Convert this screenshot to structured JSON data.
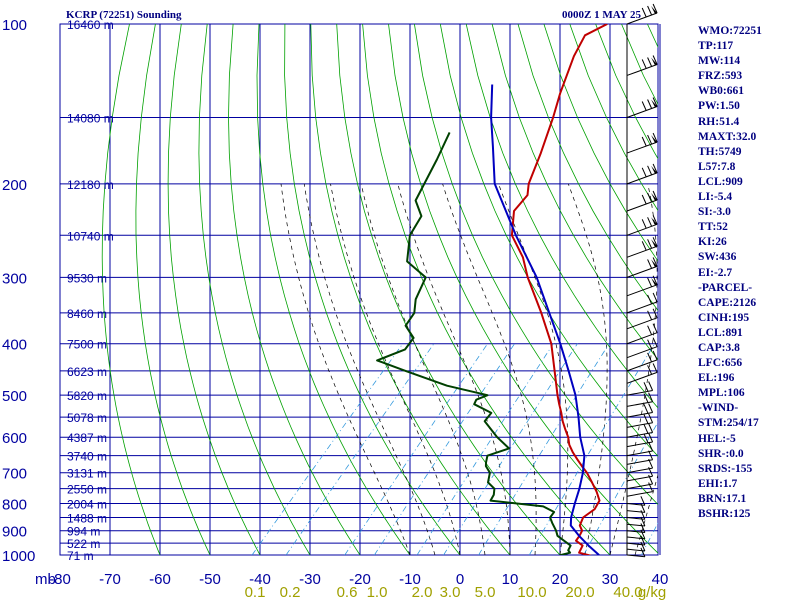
{
  "header": {
    "station": "KCRP (72251) Sounding",
    "time": "0000Z  1 MAY 25"
  },
  "indices": [
    "WMO:72251",
    "TP:117",
    "MW:114",
    "FRZ:593",
    "WB0:661",
    "PW:1.50",
    "RH:51.4",
    "MAXT:32.0",
    "TH:5749",
    "L57:7.8",
    "LCL:909",
    "LI:-5.4",
    "SI:-3.0",
    "TT:52",
    "KI:26",
    "SW:436",
    "EI:-2.7",
    "-PARCEL-",
    "CAPE:2126",
    "CINH:195",
    "LCL:891",
    "CAP:3.8",
    "LFC:656",
    "EL:196",
    "MPL:106",
    "-WIND-",
    "STM:254/17",
    "HEL:-5",
    "SHR-:0.0",
    "SRDS:-155",
    "EHI:1.7",
    "BRN:17.1",
    "BSHR:125"
  ],
  "colors": {
    "grid": "#0000a0",
    "dry_adiabat": "#00a000",
    "moist_adiabat": "#000000",
    "mixing_ratio": "#3399dd",
    "temperature": "#c00000",
    "dewpoint": "#004000",
    "parcel": "#0000c0",
    "label": "#0000a0",
    "mixing_label": "#a0a000"
  },
  "chart_data": {
    "type": "skew-t",
    "pressure_levels": [
      100,
      200,
      300,
      400,
      500,
      600,
      700,
      800,
      900,
      1000
    ],
    "pressure_axis_unit": "mb",
    "y_scale": "log",
    "temperature_ticks": [
      -80,
      -70,
      -60,
      -50,
      -40,
      -30,
      -20,
      -10,
      0,
      10,
      20,
      30,
      40
    ],
    "mixing_ratio_ticks": [
      "0.1",
      "0.2",
      "0.6",
      "1.0",
      "2.0",
      "3.0",
      "5.0",
      "10.0",
      "20.0",
      "40.0",
      "g/kg"
    ],
    "height_labels": [
      {
        "p": 100,
        "label": "16460 m"
      },
      {
        "p": 150,
        "label": "14080 m"
      },
      {
        "p": 200,
        "label": "12180 m"
      },
      {
        "p": 250,
        "label": "10740 m"
      },
      {
        "p": 300,
        "label": "9530 m"
      },
      {
        "p": 350,
        "label": "8460 m"
      },
      {
        "p": 400,
        "label": "7500 m"
      },
      {
        "p": 450,
        "label": "6623 m"
      },
      {
        "p": 500,
        "label": "5820 m"
      },
      {
        "p": 550,
        "label": "5078 m"
      },
      {
        "p": 600,
        "label": "4387 m"
      },
      {
        "p": 650,
        "label": "3740 m"
      },
      {
        "p": 700,
        "label": "3131 m"
      },
      {
        "p": 750,
        "label": "2550 m"
      },
      {
        "p": 800,
        "label": "2004 m"
      },
      {
        "p": 850,
        "label": "1488 m"
      },
      {
        "p": 900,
        "label": "994 m"
      },
      {
        "p": 950,
        "label": "522 m"
      },
      {
        "p": 1000,
        "label": "71 m"
      }
    ],
    "series": [
      {
        "name": "temperature",
        "points": [
          [
            1010,
            27.8
          ],
          [
            990,
            23.4
          ],
          [
            960,
            22.8
          ],
          [
            940,
            20.6
          ],
          [
            920,
            20.4
          ],
          [
            900,
            20.0
          ],
          [
            880,
            18.6
          ],
          [
            850,
            17.8
          ],
          [
            820,
            18.6
          ],
          [
            790,
            18.0
          ],
          [
            760,
            15.8
          ],
          [
            730,
            13.2
          ],
          [
            700,
            10.4
          ],
          [
            680,
            8.2
          ],
          [
            660,
            6.0
          ],
          [
            640,
            3.8
          ],
          [
            620,
            1.8
          ],
          [
            600,
            0.2
          ],
          [
            580,
            -1.8
          ],
          [
            560,
            -3.8
          ],
          [
            540,
            -5.6
          ],
          [
            520,
            -7.6
          ],
          [
            500,
            -9.6
          ],
          [
            450,
            -14.6
          ],
          [
            400,
            -20.2
          ],
          [
            350,
            -27.8
          ],
          [
            300,
            -37.0
          ],
          [
            275,
            -41.6
          ],
          [
            250,
            -47.8
          ],
          [
            225,
            -51.8
          ],
          [
            210,
            -52.0
          ],
          [
            200,
            -53.8
          ],
          [
            175,
            -57.0
          ],
          [
            150,
            -61.0
          ],
          [
            135,
            -64.0
          ],
          [
            115,
            -68.0
          ],
          [
            105,
            -69.6
          ],
          [
            100,
            -67.2
          ]
        ]
      },
      {
        "name": "dewpoint",
        "points": [
          [
            1010,
            21.0
          ],
          [
            1000,
            20.2
          ],
          [
            990,
            21.6
          ],
          [
            980,
            20.8
          ],
          [
            960,
            20.4
          ],
          [
            940,
            18.2
          ],
          [
            920,
            16.0
          ],
          [
            900,
            14.8
          ],
          [
            870,
            12.6
          ],
          [
            850,
            11.2
          ],
          [
            830,
            11.0
          ],
          [
            810,
            7.8
          ],
          [
            790,
            -3.8
          ],
          [
            770,
            -4.2
          ],
          [
            750,
            -5.2
          ],
          [
            730,
            -7.6
          ],
          [
            700,
            -9.0
          ],
          [
            680,
            -11.0
          ],
          [
            670,
            -11.6
          ],
          [
            650,
            -12.6
          ],
          [
            630,
            -9.6
          ],
          [
            600,
            -14.0
          ],
          [
            560,
            -19.4
          ],
          [
            540,
            -19.6
          ],
          [
            520,
            -24.6
          ],
          [
            510,
            -25.0
          ],
          [
            500,
            -23.6
          ],
          [
            480,
            -33.4
          ],
          [
            450,
            -44.4
          ],
          [
            430,
            -52.0
          ],
          [
            410,
            -48.4
          ],
          [
            390,
            -48.8
          ],
          [
            370,
            -52.6
          ],
          [
            350,
            -53.2
          ],
          [
            330,
            -55.4
          ],
          [
            300,
            -57.4
          ],
          [
            280,
            -64.0
          ],
          [
            250,
            -68.2
          ],
          [
            230,
            -69.4
          ],
          [
            215,
            -73.4
          ],
          [
            180,
            -76.6
          ],
          [
            160,
            -79.0
          ]
        ]
      },
      {
        "name": "parcel",
        "points": [
          [
            1000,
            27.8
          ],
          [
            960,
            24.0
          ],
          [
            920,
            20.3
          ],
          [
            880,
            16.8
          ],
          [
            850,
            15.4
          ],
          [
            800,
            13.6
          ],
          [
            750,
            11.8
          ],
          [
            700,
            9.6
          ],
          [
            650,
            6.8
          ],
          [
            600,
            2.6
          ],
          [
            550,
            -1.4
          ],
          [
            500,
            -6.0
          ],
          [
            450,
            -11.8
          ],
          [
            400,
            -18.4
          ],
          [
            350,
            -26.2
          ],
          [
            300,
            -35.2
          ],
          [
            250,
            -47.0
          ],
          [
            200,
            -60.6
          ],
          [
            170,
            -67.8
          ],
          [
            150,
            -73.4
          ],
          [
            130,
            -79.2
          ]
        ]
      }
    ],
    "wind_barbs": true,
    "grid": true
  }
}
